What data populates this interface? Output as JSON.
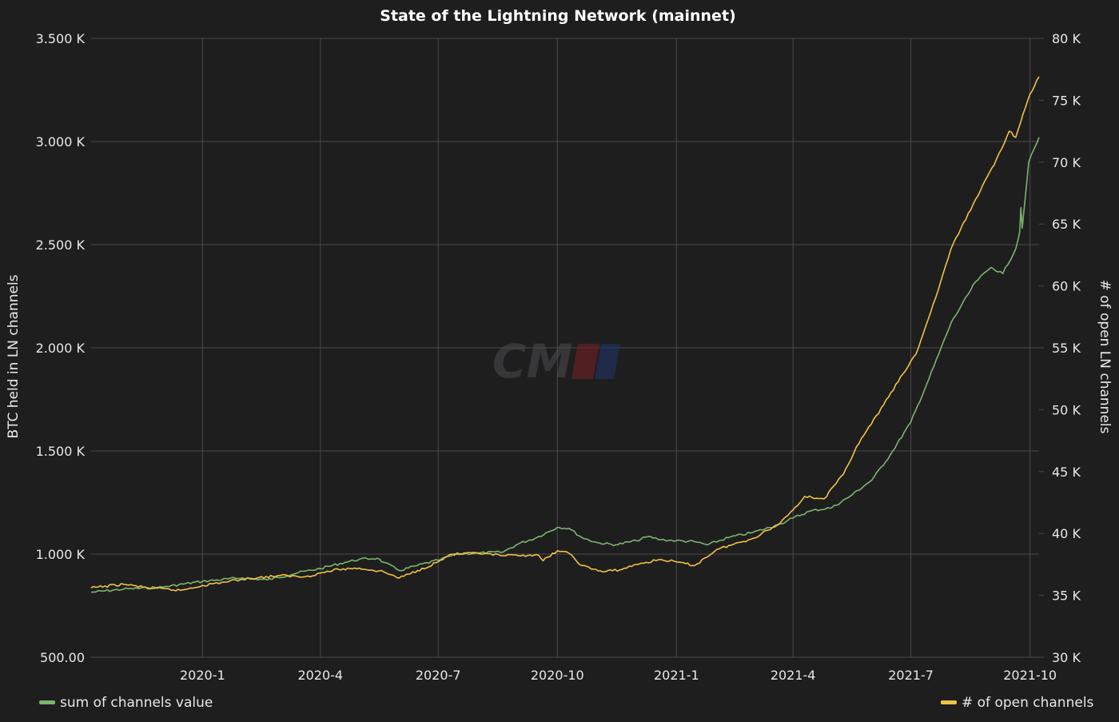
{
  "chart_data": {
    "type": "line",
    "title": "State of the Lightning Network (mainnet)",
    "ylabel_left": "BTC held in LN channels",
    "ylabel_right": "# of open LN channels",
    "x_ticks": [
      "2020-1",
      "2020-4",
      "2020-7",
      "2020-10",
      "2021-1",
      "2021-4",
      "2021-7",
      "2021-10"
    ],
    "x_range": [
      "2019-10-07",
      "2021-10-08"
    ],
    "y_left": {
      "ticks": [
        "500.00",
        "1.000 K",
        "1.500 K",
        "2.000 K",
        "2.500 K",
        "3.000 K",
        "3.500 K"
      ],
      "range": [
        500,
        3500
      ]
    },
    "y_right": {
      "ticks": [
        "30 K",
        "35 K",
        "40 K",
        "45 K",
        "50 K",
        "55 K",
        "60 K",
        "65 K",
        "70 K",
        "75 K",
        "80 K"
      ],
      "range": [
        30000,
        80000
      ]
    },
    "grid": true,
    "legend_position": "bottom",
    "series": [
      {
        "name": "sum of channels value",
        "axis": "left",
        "color": "#7bb56d",
        "points": [
          [
            "2019-10-07",
            815
          ],
          [
            "2019-11-01",
            830
          ],
          [
            "2019-12-01",
            840
          ],
          [
            "2020-01-01",
            868
          ],
          [
            "2020-02-01",
            885
          ],
          [
            "2020-02-20",
            875
          ],
          [
            "2020-03-15",
            910
          ],
          [
            "2020-04-01",
            930
          ],
          [
            "2020-04-20",
            960
          ],
          [
            "2020-05-01",
            975
          ],
          [
            "2020-05-15",
            980
          ],
          [
            "2020-05-20",
            960
          ],
          [
            "2020-06-01",
            920
          ],
          [
            "2020-06-15",
            945
          ],
          [
            "2020-07-01",
            970
          ],
          [
            "2020-07-15",
            1000
          ],
          [
            "2020-08-01",
            1005
          ],
          [
            "2020-08-20",
            1010
          ],
          [
            "2020-09-01",
            1050
          ],
          [
            "2020-09-15",
            1080
          ],
          [
            "2020-10-01",
            1130
          ],
          [
            "2020-10-10",
            1125
          ],
          [
            "2020-10-20",
            1080
          ],
          [
            "2020-11-01",
            1055
          ],
          [
            "2020-11-15",
            1045
          ],
          [
            "2020-12-01",
            1065
          ],
          [
            "2020-12-10",
            1085
          ],
          [
            "2020-12-20",
            1070
          ],
          [
            "2021-01-01",
            1065
          ],
          [
            "2021-01-15",
            1060
          ],
          [
            "2021-01-25",
            1045
          ],
          [
            "2021-02-10",
            1080
          ],
          [
            "2021-03-01",
            1105
          ],
          [
            "2021-03-20",
            1140
          ],
          [
            "2021-04-01",
            1175
          ],
          [
            "2021-04-15",
            1210
          ],
          [
            "2021-05-01",
            1225
          ],
          [
            "2021-05-15",
            1280
          ],
          [
            "2021-06-01",
            1360
          ],
          [
            "2021-06-15",
            1480
          ],
          [
            "2021-07-01",
            1640
          ],
          [
            "2021-07-15",
            1850
          ],
          [
            "2021-08-01",
            2120
          ],
          [
            "2021-08-20",
            2320
          ],
          [
            "2021-09-01",
            2390
          ],
          [
            "2021-09-10",
            2360
          ],
          [
            "2021-09-20",
            2480
          ],
          [
            "2021-09-23",
            2560
          ],
          [
            "2021-09-24",
            2680
          ],
          [
            "2021-09-25",
            2580
          ],
          [
            "2021-09-30",
            2900
          ],
          [
            "2021-10-08",
            3020
          ]
        ]
      },
      {
        "name": "# of open channels",
        "axis": "right",
        "color": "#f2c144",
        "points": [
          [
            "2019-10-07",
            35600
          ],
          [
            "2019-11-01",
            35900
          ],
          [
            "2019-11-20",
            35600
          ],
          [
            "2019-12-15",
            35400
          ],
          [
            "2020-01-01",
            35800
          ],
          [
            "2020-02-01",
            36300
          ],
          [
            "2020-03-01",
            36600
          ],
          [
            "2020-03-20",
            36500
          ],
          [
            "2020-04-01",
            36800
          ],
          [
            "2020-04-15",
            37100
          ],
          [
            "2020-05-01",
            37200
          ],
          [
            "2020-05-20",
            36900
          ],
          [
            "2020-06-01",
            36400
          ],
          [
            "2020-06-15",
            37000
          ],
          [
            "2020-07-01",
            37700
          ],
          [
            "2020-07-10",
            38300
          ],
          [
            "2020-08-01",
            38400
          ],
          [
            "2020-08-20",
            38200
          ],
          [
            "2020-09-01",
            38200
          ],
          [
            "2020-09-15",
            38300
          ],
          [
            "2020-09-20",
            37800
          ],
          [
            "2020-10-01",
            38600
          ],
          [
            "2020-10-10",
            38400
          ],
          [
            "2020-10-20",
            37400
          ],
          [
            "2020-11-05",
            36900
          ],
          [
            "2020-11-20",
            37100
          ],
          [
            "2020-12-01",
            37500
          ],
          [
            "2020-12-20",
            37900
          ],
          [
            "2021-01-01",
            37700
          ],
          [
            "2021-01-15",
            37400
          ],
          [
            "2021-02-01",
            38700
          ],
          [
            "2021-03-01",
            39600
          ],
          [
            "2021-03-20",
            40700
          ],
          [
            "2021-04-01",
            41900
          ],
          [
            "2021-04-10",
            43000
          ],
          [
            "2021-04-25",
            42800
          ],
          [
            "2021-05-10",
            44800
          ],
          [
            "2021-05-20",
            47000
          ],
          [
            "2021-06-10",
            50400
          ],
          [
            "2021-06-25",
            52900
          ],
          [
            "2021-07-05",
            54500
          ],
          [
            "2021-07-20",
            59000
          ],
          [
            "2021-08-01",
            63000
          ],
          [
            "2021-08-20",
            67000
          ],
          [
            "2021-09-05",
            70200
          ],
          [
            "2021-09-15",
            72500
          ],
          [
            "2021-09-20",
            72000
          ],
          [
            "2021-10-01",
            75500
          ],
          [
            "2021-10-08",
            76900
          ]
        ]
      }
    ]
  },
  "watermark": "CM"
}
